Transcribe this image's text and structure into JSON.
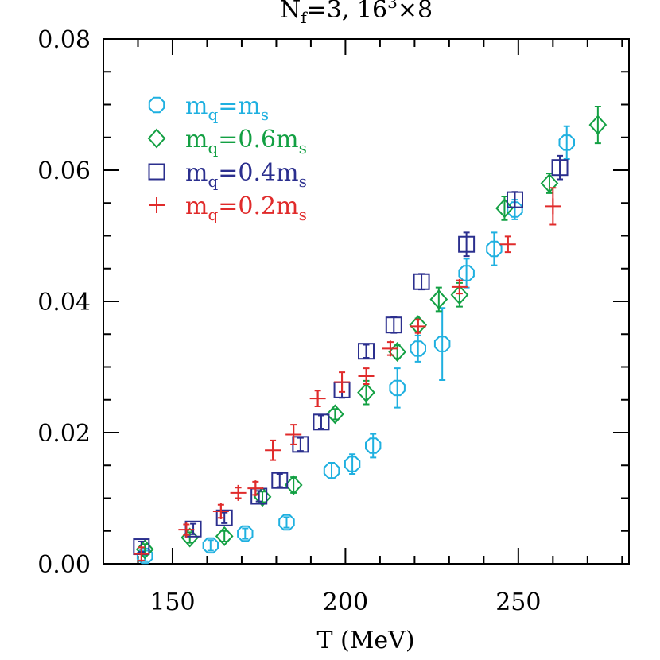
{
  "chart_data": {
    "type": "scatter",
    "title": "N_f=3, 16^3×8",
    "title_parts": {
      "n": "N",
      "f": "f",
      "eq": "=3,  16",
      "cube": "3",
      "rest": "×8"
    },
    "xlabel": "T (MeV)",
    "ylabel": "",
    "xlim": [
      130,
      282
    ],
    "ylim": [
      0,
      0.08
    ],
    "xticks": [
      "150",
      "200",
      "250"
    ],
    "xtick_values": [
      150,
      200,
      250
    ],
    "yticks": [
      "0.00",
      "0.02",
      "0.04",
      "0.06",
      "0.08"
    ],
    "ytick_values": [
      0,
      0.02,
      0.04,
      0.06,
      0.08
    ],
    "grid": false,
    "legend_position": "top-left",
    "series": [
      {
        "name": "m_q=m_s",
        "label_parts": [
          "m",
          "q",
          "=m",
          "s"
        ],
        "marker": "octagon",
        "color": "#1fb0e0",
        "points": [
          {
            "x": 142,
            "y": 0.0012,
            "err": 0.0008
          },
          {
            "x": 161,
            "y": 0.0028,
            "err": 0.0008
          },
          {
            "x": 171,
            "y": 0.0046,
            "err": 0.0008
          },
          {
            "x": 183,
            "y": 0.0063,
            "err": 0.0008
          },
          {
            "x": 196,
            "y": 0.0142,
            "err": 0.0012
          },
          {
            "x": 202,
            "y": 0.0152,
            "err": 0.0015
          },
          {
            "x": 208,
            "y": 0.018,
            "err": 0.0018
          },
          {
            "x": 215,
            "y": 0.0268,
            "err": 0.003
          },
          {
            "x": 221,
            "y": 0.0328,
            "err": 0.002
          },
          {
            "x": 228,
            "y": 0.0335,
            "err": 0.0055
          },
          {
            "x": 235,
            "y": 0.0443,
            "err": 0.0022
          },
          {
            "x": 243,
            "y": 0.048,
            "err": 0.0025
          },
          {
            "x": 249,
            "y": 0.054,
            "err": 0.0015
          },
          {
            "x": 264,
            "y": 0.0642,
            "err": 0.0025
          }
        ]
      },
      {
        "name": "m_q=0.6m_s",
        "label_parts": [
          "m",
          "q",
          "=0.6m",
          "s"
        ],
        "marker": "diamond",
        "color": "#13a043",
        "points": [
          {
            "x": 142,
            "y": 0.0022,
            "err": 0.0008
          },
          {
            "x": 155,
            "y": 0.004,
            "err": 0.0008
          },
          {
            "x": 165,
            "y": 0.0042,
            "err": 0.0008
          },
          {
            "x": 176,
            "y": 0.0102,
            "err": 0.0008
          },
          {
            "x": 185,
            "y": 0.012,
            "err": 0.0012
          },
          {
            "x": 197,
            "y": 0.0228,
            "err": 0.0008
          },
          {
            "x": 206,
            "y": 0.0261,
            "err": 0.0018
          },
          {
            "x": 215,
            "y": 0.0323,
            "err": 0.001
          },
          {
            "x": 221,
            "y": 0.0364,
            "err": 0.001
          },
          {
            "x": 227,
            "y": 0.0403,
            "err": 0.0018
          },
          {
            "x": 233,
            "y": 0.041,
            "err": 0.0018
          },
          {
            "x": 246,
            "y": 0.0542,
            "err": 0.0018
          },
          {
            "x": 259,
            "y": 0.058,
            "err": 0.0015
          },
          {
            "x": 273,
            "y": 0.0669,
            "err": 0.0028
          }
        ]
      },
      {
        "name": "m_q=0.4m_s",
        "label_parts": [
          "m",
          "q",
          "=0.4m",
          "s"
        ],
        "marker": "square",
        "color": "#2b2f8e",
        "points": [
          {
            "x": 141,
            "y": 0.0026,
            "err": 0.0008
          },
          {
            "x": 156,
            "y": 0.0053,
            "err": 0.0008
          },
          {
            "x": 165,
            "y": 0.007,
            "err": 0.0008
          },
          {
            "x": 175,
            "y": 0.0103,
            "err": 0.0008
          },
          {
            "x": 181,
            "y": 0.0127,
            "err": 0.001
          },
          {
            "x": 187,
            "y": 0.0182,
            "err": 0.001
          },
          {
            "x": 193,
            "y": 0.0216,
            "err": 0.001
          },
          {
            "x": 199,
            "y": 0.0265,
            "err": 0.0012
          },
          {
            "x": 206,
            "y": 0.0324,
            "err": 0.001
          },
          {
            "x": 214,
            "y": 0.0364,
            "err": 0.0012
          },
          {
            "x": 222,
            "y": 0.043,
            "err": 0.0012
          },
          {
            "x": 235,
            "y": 0.0487,
            "err": 0.0018
          },
          {
            "x": 249,
            "y": 0.0555,
            "err": 0.0012
          },
          {
            "x": 262,
            "y": 0.0604,
            "err": 0.0018
          }
        ]
      },
      {
        "name": "m_q=0.2m_s",
        "label_parts": [
          "m",
          "q",
          "=0.2m",
          "s"
        ],
        "marker": "plus",
        "color": "#e02b2b",
        "points": [
          {
            "x": 141,
            "y": 0.0015,
            "err": 0.001
          },
          {
            "x": 154,
            "y": 0.0052,
            "err": 0.0008
          },
          {
            "x": 164,
            "y": 0.008,
            "err": 0.001
          },
          {
            "x": 169,
            "y": 0.0108,
            "err": 0.0008
          },
          {
            "x": 174,
            "y": 0.0115,
            "err": 0.001
          },
          {
            "x": 179,
            "y": 0.0173,
            "err": 0.0015
          },
          {
            "x": 185,
            "y": 0.0197,
            "err": 0.0015
          },
          {
            "x": 192,
            "y": 0.0252,
            "err": 0.0012
          },
          {
            "x": 199,
            "y": 0.0277,
            "err": 0.0015
          },
          {
            "x": 206,
            "y": 0.0286,
            "err": 0.0012
          },
          {
            "x": 213,
            "y": 0.0328,
            "err": 0.001
          },
          {
            "x": 221,
            "y": 0.0362,
            "err": 0.001
          },
          {
            "x": 233,
            "y": 0.0422,
            "err": 0.001
          },
          {
            "x": 247,
            "y": 0.0487,
            "err": 0.0012
          },
          {
            "x": 260,
            "y": 0.0545,
            "err": 0.0028
          }
        ]
      }
    ]
  }
}
